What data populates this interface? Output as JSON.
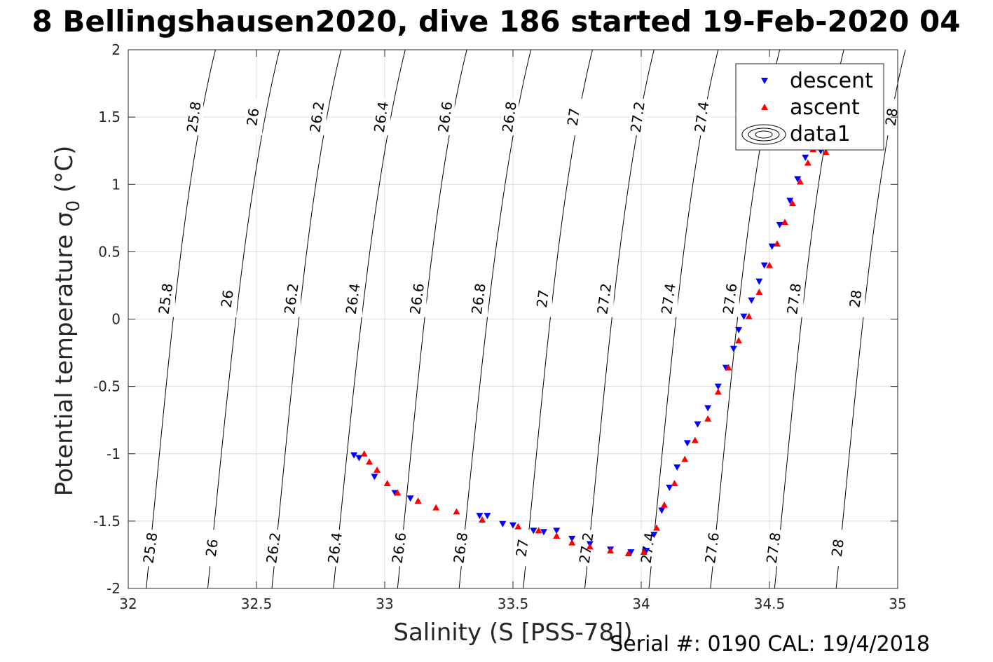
{
  "figure": {
    "title": "8 Bellingshausen2020, dive 186 started 19-Feb-2020 04",
    "footer": "Serial #: 0190  CAL: 19/4/2018"
  },
  "chart_data": {
    "type": "scatter",
    "title": "8 Bellingshausen2020, dive 186 started 19-Feb-2020 04",
    "xlabel": "Salinity (S [PSS-78])",
    "ylabel": "Potential temperature σ0 (°C)",
    "xlim": [
      32,
      35
    ],
    "ylim": [
      -2,
      2
    ],
    "xticks": [
      32,
      32.5,
      33,
      33.5,
      34,
      34.5,
      35
    ],
    "xtick_labels": [
      "32",
      "32.5",
      "33",
      "33.5",
      "34",
      "34.5",
      "35"
    ],
    "yticks": [
      -2,
      -1.5,
      -1,
      -0.5,
      0,
      0.5,
      1,
      1.5,
      2
    ],
    "ytick_labels": [
      "-2",
      "-1.5",
      "-1",
      "-0.5",
      "0",
      "0.5",
      "1",
      "1.5",
      "2"
    ],
    "grid": true,
    "legend_position": "top-right",
    "legend": [
      "descent",
      "ascent",
      "data1"
    ],
    "colors": {
      "descent": "#0000ff",
      "ascent": "#ff0000",
      "contour": "#000000",
      "grid": "#dcdcdc"
    },
    "density_contours": {
      "name": "data1",
      "levels": [
        "25.8",
        "26",
        "26.2",
        "26.4",
        "26.6",
        "26.8",
        "27",
        "27.2",
        "27.4",
        "27.6",
        "27.8",
        "28"
      ],
      "lines": [
        {
          "level": "25.8",
          "x_bottom": 32.07,
          "x_top": 32.04,
          "x_labels": [
            32.09,
            32.15,
            32.26
          ]
        },
        {
          "level": "26",
          "x_bottom": 32.31,
          "x_top": 32.29,
          "x_labels": [
            32.33,
            32.39,
            32.49
          ]
        },
        {
          "level": "26.2",
          "x_bottom": 32.56,
          "x_top": 32.53,
          "x_labels": [
            32.57,
            32.64,
            32.74
          ]
        },
        {
          "level": "26.4",
          "x_bottom": 32.8,
          "x_top": 32.78,
          "x_labels": [
            32.81,
            32.88,
            32.99
          ]
        },
        {
          "level": "26.6",
          "x_bottom": 33.05,
          "x_top": 33.02,
          "x_labels": [
            33.06,
            33.13,
            33.24
          ]
        },
        {
          "level": "26.8",
          "x_bottom": 33.29,
          "x_top": 33.27,
          "x_labels": [
            33.3,
            33.37,
            33.49
          ]
        },
        {
          "level": "27",
          "x_bottom": 33.54,
          "x_top": 33.51,
          "x_labels": [
            33.54,
            33.62,
            33.74
          ]
        },
        {
          "level": "27.2",
          "x_bottom": 33.78,
          "x_top": 33.75,
          "x_labels": [
            33.79,
            33.86,
            33.99
          ]
        },
        {
          "level": "27.4",
          "x_bottom": 34.03,
          "x_top": 34.0,
          "x_labels": [
            34.03,
            34.11,
            34.24
          ]
        },
        {
          "level": "27.6",
          "x_bottom": 34.27,
          "x_top": 34.24,
          "x_labels": [
            34.28,
            34.35,
            34.48
          ]
        },
        {
          "level": "27.8",
          "x_bottom": 34.52,
          "x_top": 34.49,
          "x_labels": [
            34.52,
            34.6,
            34.73
          ]
        },
        {
          "level": "28",
          "x_bottom": 34.76,
          "x_top": 34.73,
          "x_labels": [
            34.77,
            34.84,
            34.98
          ]
        }
      ]
    },
    "series": [
      {
        "name": "descent",
        "marker": "triangle-down",
        "color": "#0000ff",
        "points": [
          [
            32.88,
            -1.01
          ],
          [
            32.9,
            -1.03
          ],
          [
            32.96,
            -1.17
          ],
          [
            33.04,
            -1.29
          ],
          [
            33.1,
            -1.33
          ],
          [
            33.37,
            -1.46
          ],
          [
            33.4,
            -1.46
          ],
          [
            33.46,
            -1.52
          ],
          [
            33.5,
            -1.53
          ],
          [
            33.58,
            -1.57
          ],
          [
            33.62,
            -1.58
          ],
          [
            33.67,
            -1.57
          ],
          [
            33.73,
            -1.63
          ],
          [
            33.8,
            -1.67
          ],
          [
            33.88,
            -1.71
          ],
          [
            33.96,
            -1.73
          ],
          [
            34.02,
            -1.72
          ],
          [
            34.05,
            -1.6
          ],
          [
            34.08,
            -1.42
          ],
          [
            34.11,
            -1.25
          ],
          [
            34.14,
            -1.1
          ],
          [
            34.18,
            -0.92
          ],
          [
            34.22,
            -0.78
          ],
          [
            34.26,
            -0.66
          ],
          [
            34.3,
            -0.5
          ],
          [
            34.33,
            -0.36
          ],
          [
            34.36,
            -0.22
          ],
          [
            34.38,
            -0.08
          ],
          [
            34.4,
            0.02
          ],
          [
            34.43,
            0.14
          ],
          [
            34.46,
            0.28
          ],
          [
            34.48,
            0.4
          ],
          [
            34.51,
            0.54
          ],
          [
            34.54,
            0.7
          ],
          [
            34.58,
            0.88
          ],
          [
            34.61,
            1.04
          ],
          [
            34.64,
            1.2
          ],
          [
            34.68,
            1.34
          ],
          [
            34.7,
            1.25
          ]
        ]
      },
      {
        "name": "ascent",
        "marker": "triangle-up",
        "color": "#ff0000",
        "points": [
          [
            32.92,
            -1.0
          ],
          [
            32.94,
            -1.06
          ],
          [
            32.97,
            -1.12
          ],
          [
            33.01,
            -1.22
          ],
          [
            33.05,
            -1.29
          ],
          [
            33.13,
            -1.35
          ],
          [
            33.2,
            -1.4
          ],
          [
            33.28,
            -1.43
          ],
          [
            33.38,
            -1.49
          ],
          [
            33.52,
            -1.54
          ],
          [
            33.6,
            -1.57
          ],
          [
            33.67,
            -1.61
          ],
          [
            33.73,
            -1.66
          ],
          [
            33.8,
            -1.69
          ],
          [
            33.88,
            -1.72
          ],
          [
            33.95,
            -1.74
          ],
          [
            34.01,
            -1.73
          ],
          [
            34.06,
            -1.55
          ],
          [
            34.09,
            -1.38
          ],
          [
            34.13,
            -1.22
          ],
          [
            34.17,
            -1.04
          ],
          [
            34.21,
            -0.9
          ],
          [
            34.26,
            -0.74
          ],
          [
            34.3,
            -0.54
          ],
          [
            34.34,
            -0.36
          ],
          [
            34.38,
            -0.16
          ],
          [
            34.42,
            0.02
          ],
          [
            34.46,
            0.2
          ],
          [
            34.5,
            0.4
          ],
          [
            34.53,
            0.56
          ],
          [
            34.56,
            0.72
          ],
          [
            34.59,
            0.86
          ],
          [
            34.62,
            1.02
          ],
          [
            34.65,
            1.16
          ],
          [
            34.67,
            1.26
          ],
          [
            34.72,
            1.24
          ]
        ]
      }
    ]
  }
}
